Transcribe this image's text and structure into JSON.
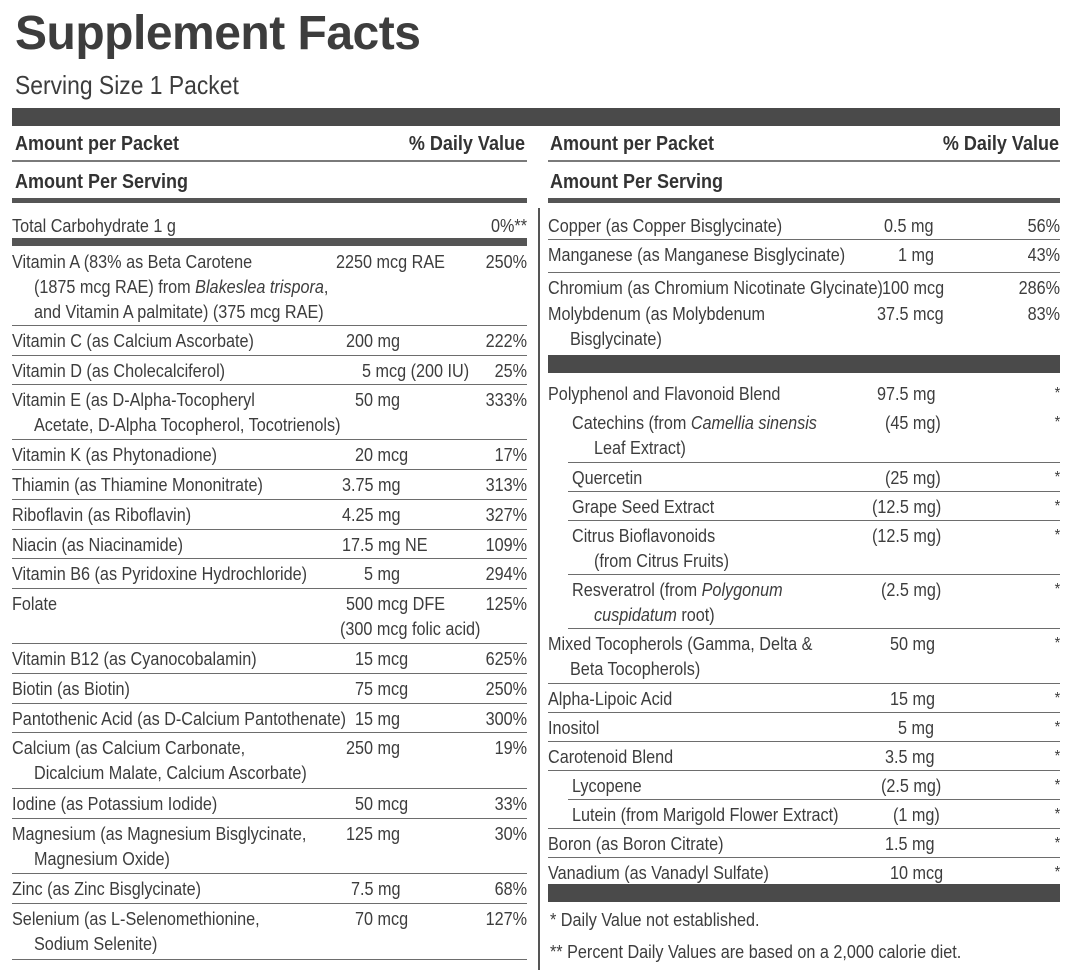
{
  "title": "Supplement Facts",
  "serving_size": "Serving Size 1 Packet",
  "header": {
    "amount_per_packet": "Amount per Packet",
    "daily_value": "% Daily Value",
    "amount_per_serving": "Amount Per Serving"
  },
  "left": [
    {
      "name": "Total Carbohydrate 1 g",
      "amount": "",
      "dv": "0%**"
    },
    {
      "name": "Vitamin A (83% as Beta Carotene",
      "name2": "(1875 mcg RAE) from Blakeslea trispora,",
      "name3": "and Vitamin A palmitate) (375 mcg RAE)",
      "amount": "2250 mcg RAE",
      "dv": "250%"
    },
    {
      "name": "Vitamin C (as Calcium Ascorbate)",
      "amount": "200 mg",
      "dv": "222%"
    },
    {
      "name": "Vitamin D (as Cholecalciferol)",
      "amount": "5 mcg (200 IU)",
      "dv": "25%"
    },
    {
      "name": "Vitamin E (as D-Alpha-Tocopheryl",
      "name2": "Acetate, D-Alpha Tocopherol, Tocotrienols)",
      "amount": "50 mg",
      "dv": "333%"
    },
    {
      "name": "Vitamin K (as Phytonadione)",
      "amount": "20 mcg",
      "dv": "17%"
    },
    {
      "name": "Thiamin (as Thiamine Mononitrate)",
      "amount": "3.75 mg",
      "dv": "313%"
    },
    {
      "name": "Riboflavin (as Riboflavin)",
      "amount": "4.25 mg",
      "dv": "327%"
    },
    {
      "name": "Niacin (as Niacinamide)",
      "amount": "17.5 mg NE",
      "dv": "109%"
    },
    {
      "name": "Vitamin B6 (as Pyridoxine Hydrochloride)",
      "amount": "5 mg",
      "dv": "294%"
    },
    {
      "name": "Folate",
      "amount": "500 mcg DFE",
      "amount2": "(300 mcg folic acid)",
      "dv": "125%"
    },
    {
      "name": "Vitamin B12 (as Cyanocobalamin)",
      "amount": "15 mcg",
      "dv": "625%"
    },
    {
      "name": "Biotin (as Biotin)",
      "amount": "75 mcg",
      "dv": "250%"
    },
    {
      "name": "Pantothenic Acid (as D-Calcium Pantothenate)",
      "amount": "15 mg",
      "dv": "300%"
    },
    {
      "name": "Calcium (as Calcium Carbonate,",
      "name2": "Dicalcium Malate, Calcium Ascorbate)",
      "amount": "250 mg",
      "dv": "19%"
    },
    {
      "name": "Iodine (as Potassium Iodide)",
      "amount": "50 mcg",
      "dv": "33%"
    },
    {
      "name": "Magnesium (as Magnesium Bisglycinate,",
      "name2": "Magnesium Oxide)",
      "amount": "125 mg",
      "dv": "30%"
    },
    {
      "name": "Zinc (as Zinc Bisglycinate)",
      "amount": "7.5 mg",
      "dv": "68%"
    },
    {
      "name": "Selenium (as L-Selenomethionine,",
      "name2": "Sodium Selenite)",
      "amount": "70 mcg",
      "dv": "127%"
    }
  ],
  "right_top": [
    {
      "name": "Copper (as Copper Bisglycinate)",
      "amount": "0.5 mg",
      "dv": "56%"
    },
    {
      "name": "Manganese (as Manganese Bisglycinate)",
      "amount": "1 mg",
      "dv": "43%"
    },
    {
      "name": "Chromium (as Chromium Nicotinate Glycinate)",
      "amount": "100 mcg",
      "dv": "286%"
    },
    {
      "name": "Molybdenum (as Molybdenum",
      "name2": "Bisglycinate)",
      "amount": "37.5 mcg",
      "dv": "83%"
    }
  ],
  "right_bottom": [
    {
      "name": "Polyphenol and Flavonoid Blend",
      "amount": "97.5 mg",
      "dv": "*"
    },
    {
      "name": "Catechins (from Camellia sinensis",
      "name2": "Leaf Extract)",
      "amount": "(45 mg)",
      "dv": "*",
      "sub": true
    },
    {
      "name": "Quercetin",
      "amount": "(25 mg)",
      "dv": "*",
      "sub": true
    },
    {
      "name": "Grape Seed Extract",
      "amount": "(12.5 mg)",
      "dv": "*",
      "sub": true
    },
    {
      "name": "Citrus Bioflavonoids",
      "name2": "(from Citrus Fruits)",
      "amount": "(12.5 mg)",
      "dv": "*",
      "sub": true
    },
    {
      "name": "Resveratrol (from Polygonum",
      "name2": "cuspidatum root)",
      "amount": "(2.5 mg)",
      "dv": "*",
      "sub": true
    },
    {
      "name": "Mixed Tocopherols (Gamma, Delta &",
      "name2": "Beta Tocopherols)",
      "amount": "50 mg",
      "dv": "*"
    },
    {
      "name": "Alpha-Lipoic Acid",
      "amount": "15 mg",
      "dv": "*"
    },
    {
      "name": "Inositol",
      "amount": "5 mg",
      "dv": "*"
    },
    {
      "name": "Carotenoid Blend",
      "amount": "3.5 mg",
      "dv": "*"
    },
    {
      "name": "Lycopene",
      "amount": "(2.5 mg)",
      "dv": "*",
      "sub": true
    },
    {
      "name": "Lutein (from Marigold Flower Extract)",
      "amount": "(1 mg)",
      "dv": "*",
      "sub": true
    },
    {
      "name": "Boron (as Boron Citrate)",
      "amount": "1.5 mg",
      "dv": "*"
    },
    {
      "name": "Vanadium (as Vanadyl Sulfate)",
      "amount": "10 mcg",
      "dv": "*"
    }
  ],
  "footnotes": [
    "* Daily Value not established.",
    "** Percent Daily Values are based on a 2,000 calorie diet."
  ]
}
